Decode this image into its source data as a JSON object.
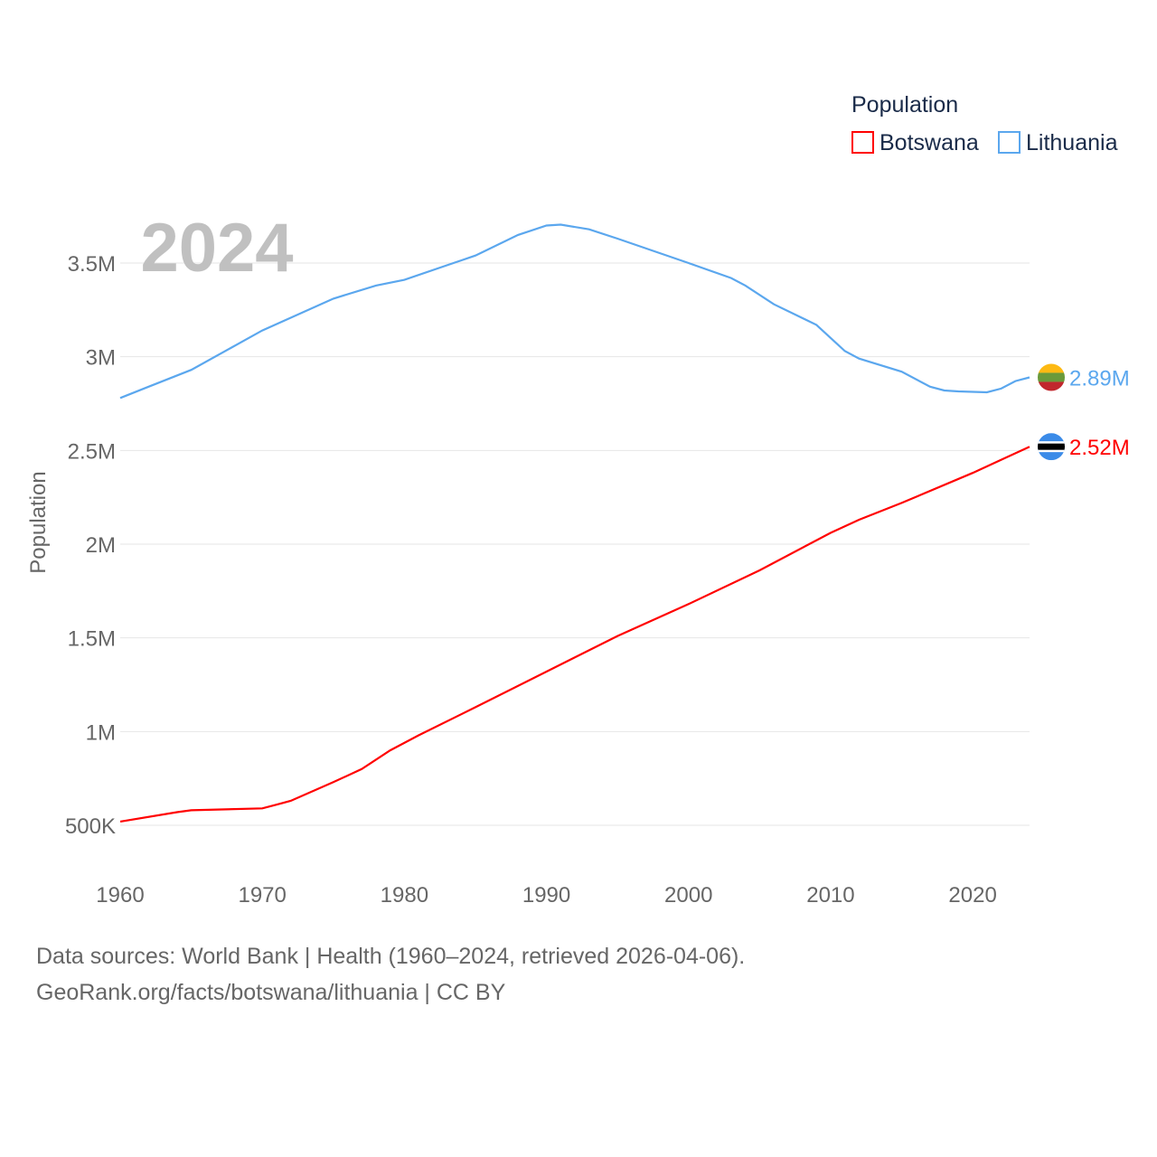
{
  "chart_data": {
    "type": "line",
    "title": "2024",
    "xlabel": "",
    "ylabel": "Population",
    "xlim": [
      1960,
      2024
    ],
    "ylim": [
      350000,
      3800000
    ],
    "x_ticks": [
      1960,
      1970,
      1980,
      1990,
      2000,
      2010,
      2020
    ],
    "x_tick_labels": [
      "1960",
      "1970",
      "1980",
      "1990",
      "2000",
      "2010",
      "2020"
    ],
    "y_ticks": [
      500000,
      1000000,
      1500000,
      2000000,
      2500000,
      3000000,
      3500000
    ],
    "y_tick_labels": [
      "500K",
      "1M",
      "1.5M",
      "2M",
      "2.5M",
      "3M",
      "3.5M"
    ],
    "grid": true,
    "legend": {
      "title": "Population",
      "placement": "top-right"
    },
    "series": [
      {
        "name": "Botswana",
        "color": "#ff0000",
        "end_label": "2.52M",
        "flag": "botswana-flag",
        "x": [
          1960,
          1964,
          1965,
          1970,
          1971,
          1972,
          1975,
          1977,
          1979,
          1981,
          1985,
          1990,
          1995,
          2000,
          2005,
          2010,
          2012,
          2015,
          2020,
          2024
        ],
        "values": [
          520000,
          570000,
          580000,
          590000,
          610000,
          630000,
          730000,
          800000,
          900000,
          980000,
          1130000,
          1320000,
          1510000,
          1680000,
          1860000,
          2060000,
          2130000,
          2220000,
          2380000,
          2520000
        ]
      },
      {
        "name": "Lithuania",
        "color": "#5ba7ee",
        "end_label": "2.89M",
        "flag": "lithuania-flag",
        "x": [
          1960,
          1962,
          1965,
          1970,
          1975,
          1978,
          1980,
          1985,
          1988,
          1990,
          1991,
          1993,
          1995,
          2000,
          2003,
          2004,
          2006,
          2009,
          2011,
          2012,
          2015,
          2017,
          2018,
          2019,
          2021,
          2022,
          2023,
          2024
        ],
        "values": [
          2780000,
          2840000,
          2930000,
          3140000,
          3310000,
          3380000,
          3410000,
          3540000,
          3650000,
          3700000,
          3705000,
          3680000,
          3630000,
          3500000,
          3420000,
          3380000,
          3280000,
          3170000,
          3030000,
          2990000,
          2920000,
          2840000,
          2820000,
          2815000,
          2810000,
          2830000,
          2870000,
          2890000
        ]
      }
    ]
  },
  "footer": {
    "line1": "Data sources: World Bank | Health (1960–2024, retrieved 2026-04-06).",
    "line2": "GeoRank.org/facts/botswana/lithuania | CC BY"
  }
}
